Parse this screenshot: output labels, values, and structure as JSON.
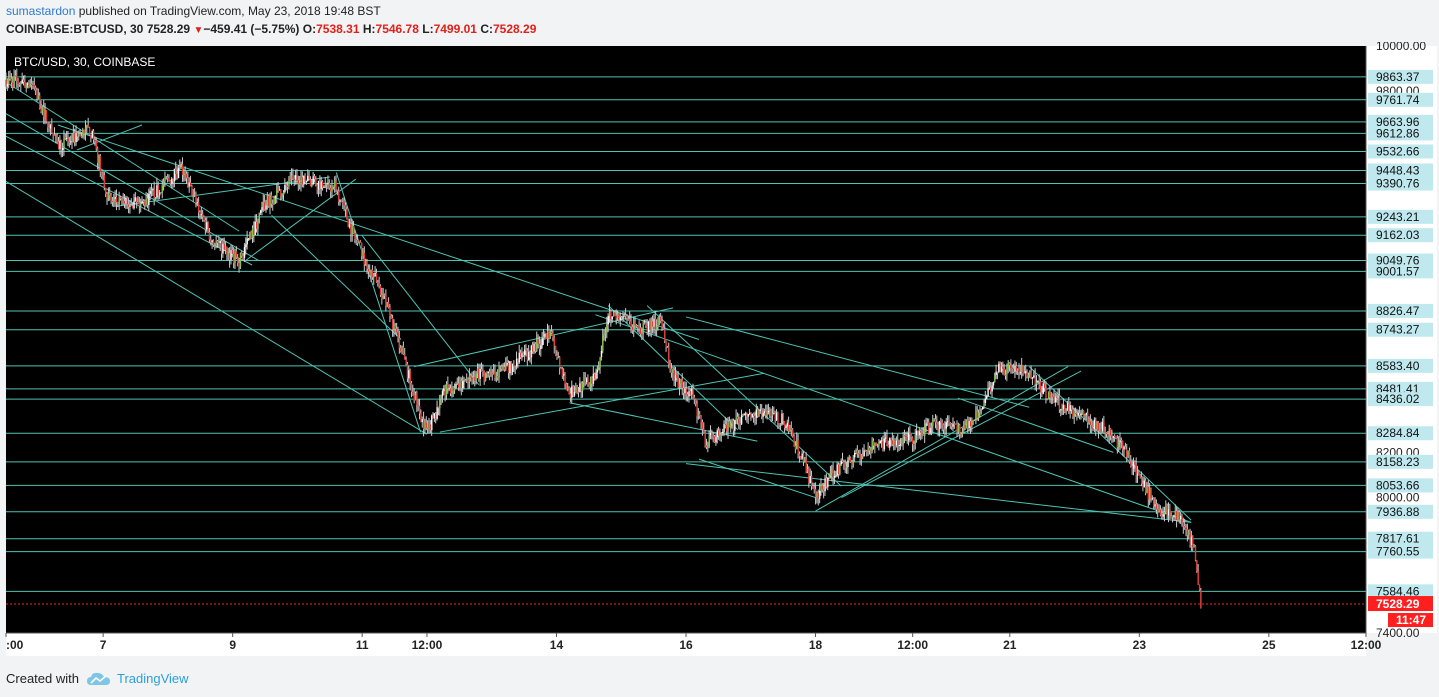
{
  "header": {
    "user": "sumastardon",
    "published_text": "published on TradingView.com, May 23, 2018 19:48 BST",
    "symbol": "COINBASE:BTCUSD, 30",
    "last": "7528.29",
    "change": "−459.41 (−5.75%)",
    "o_label": "O:",
    "o": "7538.31",
    "h_label": "H:",
    "h": "7546.78",
    "l_label": "L:",
    "l": "7499.01",
    "c_label": "C:",
    "c": "7528.29"
  },
  "footer": {
    "created_with": "Created with",
    "brand": "TradingView"
  },
  "colors": {
    "background": "#000000",
    "line": "#4fc3b3",
    "up": "#8bc34a",
    "down": "#e53935",
    "label_bg": "#bfe9ef",
    "price_tag": "#ff1f1f"
  },
  "chart_data": {
    "type": "candlestick",
    "legend": "BTC/USD, 30, COINBASE",
    "ylim": [
      7400,
      10000
    ],
    "y_ticks": [
      "10000.00",
      "9800.00",
      "8200.00",
      "8000.00",
      "7400.00"
    ],
    "x_ticks": [
      {
        "label": ":00",
        "day": 5.5
      },
      {
        "label": "7",
        "day": 7
      },
      {
        "label": "9",
        "day": 9
      },
      {
        "label": "11",
        "day": 11
      },
      {
        "label": "12:00",
        "day": 12
      },
      {
        "label": "14",
        "day": 14
      },
      {
        "label": "16",
        "day": 16
      },
      {
        "label": "18",
        "day": 18
      },
      {
        "label": "12:00",
        "day": 19.5
      },
      {
        "label": "21",
        "day": 21
      },
      {
        "label": "23",
        "day": 23
      },
      {
        "label": "25",
        "day": 25
      },
      {
        "label": "12:00",
        "day": 26.5
      }
    ],
    "levels": [
      "9863.37",
      "9761.74",
      "9663.96",
      "9612.86",
      "9532.66",
      "9448.43",
      "9390.76",
      "9243.21",
      "9162.03",
      "9049.76",
      "9001.57",
      "8826.47",
      "8743.27",
      "8583.40",
      "8481.41",
      "8436.02",
      "8284.84",
      "8158.23",
      "8053.66",
      "7936.88",
      "7817.61",
      "7760.55",
      "7584.46"
    ],
    "last_price": "7528.29",
    "countdown": "11:47",
    "path": [
      [
        5.5,
        9850
      ],
      [
        5.9,
        9830
      ],
      [
        6.3,
        9560
      ],
      [
        6.8,
        9630
      ],
      [
        7.1,
        9310
      ],
      [
        7.6,
        9300
      ],
      [
        8.2,
        9460
      ],
      [
        8.7,
        9130
      ],
      [
        9.1,
        9050
      ],
      [
        9.5,
        9300
      ],
      [
        10.0,
        9420
      ],
      [
        10.6,
        9370
      ],
      [
        10.8,
        9210
      ],
      [
        11.0,
        9080
      ],
      [
        11.3,
        8910
      ],
      [
        11.6,
        8660
      ],
      [
        11.8,
        8450
      ],
      [
        12.0,
        8290
      ],
      [
        12.3,
        8480
      ],
      [
        12.7,
        8540
      ],
      [
        13.2,
        8560
      ],
      [
        13.9,
        8720
      ],
      [
        14.2,
        8460
      ],
      [
        14.6,
        8530
      ],
      [
        14.8,
        8820
      ],
      [
        15.3,
        8740
      ],
      [
        15.6,
        8780
      ],
      [
        15.8,
        8540
      ],
      [
        16.1,
        8450
      ],
      [
        16.3,
        8250
      ],
      [
        16.7,
        8320
      ],
      [
        17.2,
        8380
      ],
      [
        17.5,
        8340
      ],
      [
        17.8,
        8180
      ],
      [
        18.0,
        8000
      ],
      [
        18.3,
        8120
      ],
      [
        18.7,
        8200
      ],
      [
        19.0,
        8240
      ],
      [
        19.5,
        8260
      ],
      [
        19.8,
        8320
      ],
      [
        20.2,
        8300
      ],
      [
        20.5,
        8360
      ],
      [
        20.8,
        8560
      ],
      [
        21.1,
        8580
      ],
      [
        21.4,
        8510
      ],
      [
        21.7,
        8430
      ],
      [
        22.1,
        8360
      ],
      [
        22.5,
        8300
      ],
      [
        22.8,
        8210
      ],
      [
        23.0,
        8080
      ],
      [
        23.3,
        7950
      ],
      [
        23.6,
        7920
      ],
      [
        23.7,
        7880
      ],
      [
        23.85,
        7760
      ],
      [
        23.95,
        7530
      ]
    ],
    "trendlines": [
      [
        [
          5.5,
          9840
        ],
        [
          9.1,
          9180
        ]
      ],
      [
        [
          5.5,
          9700
        ],
        [
          9.4,
          9050
        ]
      ],
      [
        [
          5.5,
          9600
        ],
        [
          9.3,
          9030
        ]
      ],
      [
        [
          5.5,
          9400
        ],
        [
          12.0,
          8280
        ]
      ],
      [
        [
          6.3,
          9650
        ],
        [
          16.2,
          8700
        ]
      ],
      [
        [
          6.6,
          9540
        ],
        [
          7.6,
          9650
        ]
      ],
      [
        [
          7.2,
          9290
        ],
        [
          10.5,
          9420
        ]
      ],
      [
        [
          9.2,
          9050
        ],
        [
          10.9,
          9410
        ]
      ],
      [
        [
          9.6,
          9250
        ],
        [
          11.6,
          8700
        ]
      ],
      [
        [
          10.6,
          9440
        ],
        [
          11.9,
          8290
        ]
      ],
      [
        [
          11.0,
          9160
        ],
        [
          12.8,
          8500
        ]
      ],
      [
        [
          11.8,
          8580
        ],
        [
          15.8,
          8840
        ]
      ],
      [
        [
          12.2,
          8290
        ],
        [
          17.2,
          8550
        ]
      ],
      [
        [
          14.2,
          8420
        ],
        [
          17.1,
          8250
        ]
      ],
      [
        [
          14.6,
          8810
        ],
        [
          23.8,
          7890
        ]
      ],
      [
        [
          14.8,
          8850
        ],
        [
          16.8,
          8300
        ]
      ],
      [
        [
          15.4,
          8850
        ],
        [
          18.4,
          8050
        ]
      ],
      [
        [
          16.0,
          8800
        ],
        [
          21.3,
          8400
        ]
      ],
      [
        [
          16.2,
          8170
        ],
        [
          18.0,
          8000
        ]
      ],
      [
        [
          18.0,
          7940
        ],
        [
          21.9,
          8580
        ]
      ],
      [
        [
          18.4,
          8000
        ],
        [
          22.1,
          8560
        ]
      ],
      [
        [
          16.0,
          8150
        ],
        [
          23.8,
          7890
        ]
      ],
      [
        [
          20.2,
          8440
        ],
        [
          22.6,
          8200
        ]
      ],
      [
        [
          21.3,
          8580
        ],
        [
          23.8,
          7900
        ]
      ]
    ]
  }
}
